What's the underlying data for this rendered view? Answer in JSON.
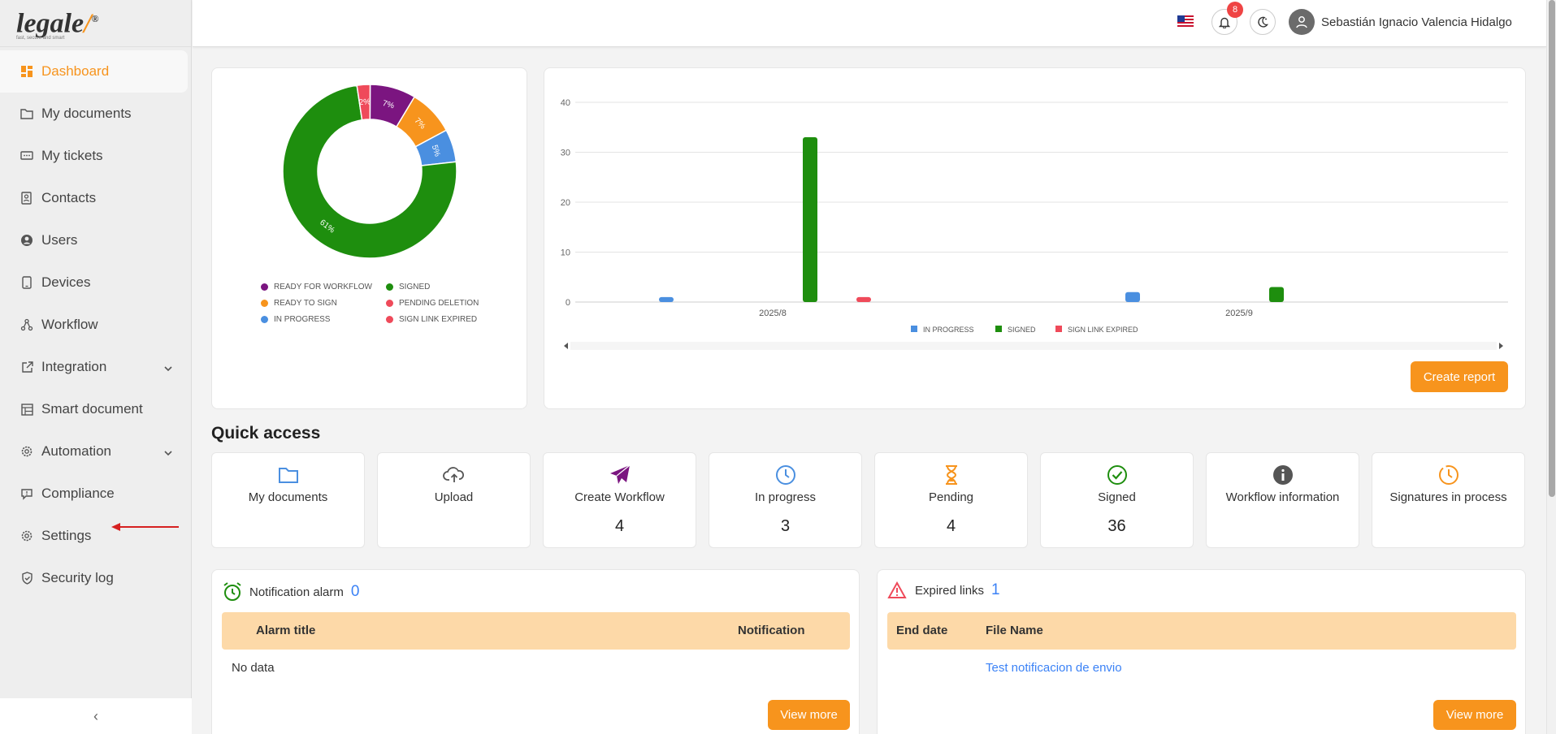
{
  "logo": {
    "word_main": "legale",
    "word_accent": "/",
    "tagline": "fast, secure and smart"
  },
  "sidebar": {
    "items": [
      {
        "label": "Dashboard"
      },
      {
        "label": "My documents"
      },
      {
        "label": "My tickets"
      },
      {
        "label": "Contacts"
      },
      {
        "label": "Users"
      },
      {
        "label": "Devices"
      },
      {
        "label": "Workflow"
      },
      {
        "label": "Integration"
      },
      {
        "label": "Smart document"
      },
      {
        "label": "Automation"
      },
      {
        "label": "Compliance"
      },
      {
        "label": "Settings"
      },
      {
        "label": "Security log"
      }
    ],
    "collapse_glyph": "‹"
  },
  "header": {
    "notification_count": "8",
    "user_name": "Sebastián Ignacio Valencia Hidalgo"
  },
  "colors": {
    "accent": "#f7941d",
    "purple": "#7b1580",
    "green": "#1e8e0e",
    "blue": "#4a8fe0",
    "red": "#ef4a5a",
    "table_header": "#fdd9a8"
  },
  "chart_data": [
    {
      "type": "pie",
      "variant": "donut",
      "slices": [
        {
          "name": "READY FOR WORKFLOW",
          "label": "7%",
          "value": 7,
          "color": "#7b1580"
        },
        {
          "name": "READY TO SIGN",
          "label": "7%",
          "value": 7,
          "color": "#f7941d"
        },
        {
          "name": "IN PROGRESS",
          "label": "5%",
          "value": 5,
          "color": "#4a8fe0"
        },
        {
          "name": "SIGNED",
          "label": "61%",
          "value": 61,
          "color": "#1e8e0e"
        },
        {
          "name": "SIGN LINK EXPIRED",
          "label": "2%",
          "value": 2,
          "color": "#ef4a5a"
        }
      ],
      "legend": [
        {
          "name": "READY FOR WORKFLOW",
          "color": "#7b1580"
        },
        {
          "name": "SIGNED",
          "color": "#1e8e0e"
        },
        {
          "name": "READY TO SIGN",
          "color": "#f7941d"
        },
        {
          "name": "PENDING DELETION",
          "color": "#ef4a5a"
        },
        {
          "name": "IN PROGRESS",
          "color": "#4a8fe0"
        },
        {
          "name": "SIGN LINK EXPIRED",
          "color": "#ef4a5a"
        }
      ]
    },
    {
      "type": "bar",
      "categories": [
        "2025/8",
        "2025/9"
      ],
      "series": [
        {
          "name": "IN PROGRESS",
          "color": "#4a8fe0",
          "values": [
            1,
            2
          ]
        },
        {
          "name": "SIGNED",
          "color": "#1e8e0e",
          "values": [
            33,
            3
          ]
        },
        {
          "name": "SIGN LINK EXPIRED",
          "color": "#ef4a5a",
          "values": [
            1,
            0
          ]
        }
      ],
      "yticks": [
        "0",
        "10",
        "20",
        "30",
        "40"
      ],
      "ylim": [
        0,
        40
      ],
      "grid": true,
      "legend_position": "bottom"
    }
  ],
  "report": {
    "create_label": "Create report"
  },
  "quick_access": {
    "title": "Quick access",
    "cards": [
      {
        "label": "My documents",
        "icon": "folder-icon",
        "count": ""
      },
      {
        "label": "Upload",
        "icon": "cloud-upload-icon",
        "count": ""
      },
      {
        "label": "Create Workflow",
        "icon": "paper-plane-icon",
        "count": "4"
      },
      {
        "label": "In progress",
        "icon": "clock-icon",
        "count": "3"
      },
      {
        "label": "Pending",
        "icon": "hourglass-icon",
        "count": "4"
      },
      {
        "label": "Signed",
        "icon": "check-circle-icon",
        "count": "36"
      },
      {
        "label": "Workflow information",
        "icon": "info-icon",
        "count": ""
      },
      {
        "label": "Signatures in process",
        "icon": "clock-icon",
        "count": ""
      }
    ]
  },
  "notification_panel": {
    "title": "Notification alarm",
    "count": "0",
    "columns": [
      "Alarm title",
      "Notification"
    ],
    "empty_text": "No data",
    "view_more": "View more"
  },
  "expired_panel": {
    "title": "Expired links",
    "count": "1",
    "columns": [
      "End date",
      "File Name"
    ],
    "rows": [
      {
        "end_date": "",
        "file_name": "Test notificacion de envio"
      }
    ],
    "view_more": "View more"
  }
}
